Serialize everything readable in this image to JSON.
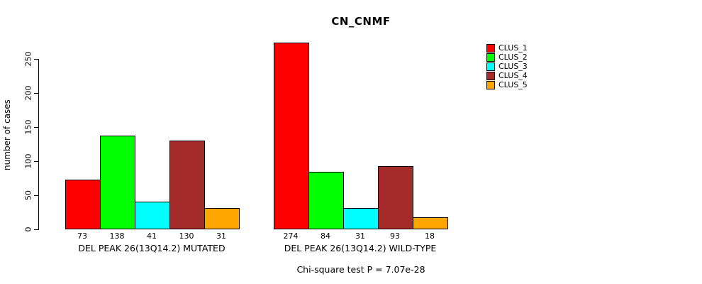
{
  "chart_data": {
    "type": "bar",
    "title": "CN_CNMF",
    "ylabel": "number of cases",
    "xlabel": "",
    "yticks": [
      0,
      50,
      100,
      150,
      200,
      250
    ],
    "ylim": [
      0,
      274
    ],
    "grid": false,
    "legend_position": "right-outside",
    "legend": [
      {
        "label": "CLUS_1",
        "color": "#FF0000"
      },
      {
        "label": "CLUS_2",
        "color": "#00FF00"
      },
      {
        "label": "CLUS_3",
        "color": "#00FFFF"
      },
      {
        "label": "CLUS_4",
        "color": "#A52A2A"
      },
      {
        "label": "CLUS_5",
        "color": "#FFA500"
      }
    ],
    "groups": [
      {
        "label": "DEL PEAK 26(13Q14.2) MUTATED",
        "values": [
          73,
          138,
          41,
          130,
          31
        ]
      },
      {
        "label": "DEL PEAK 26(13Q14.2) WILD-TYPE",
        "values": [
          274,
          84,
          31,
          93,
          18
        ]
      }
    ],
    "annotation": "Chi-square test P = 7.07e-28",
    "axis_color": "#000000",
    "background_color": "#FFFFFF"
  }
}
